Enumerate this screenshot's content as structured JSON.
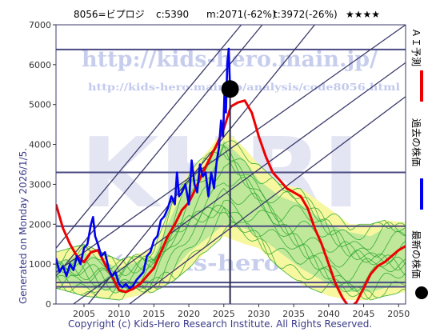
{
  "header": {
    "code": "8056=ビプロジ",
    "current": "c:5390",
    "max": "m:2071(-62%)",
    "target": "t:3972(-26%)",
    "rating": "★★★★"
  },
  "generated_label": "Generated on Monday 2026/1/5.",
  "copyright": "Copyright (c) Kids-Hero Research Institute. All Rights Reserved.",
  "watermark": {
    "url": "http://kids-hero.main.jp/",
    "analysis_url": "http://kids-hero.main.jp/analysis/code8056.html",
    "big": "KHRI",
    "small": "(c)kids-hero"
  },
  "legend": {
    "ai_forecast": "ＡＩ予測",
    "past_price": "過去の株価",
    "latest_price": "最新の株価"
  },
  "colors": {
    "ai_forecast": "#ee0000",
    "past_price": "#0000ee",
    "latest_marker": "#000000",
    "band_outer": "#f7f7a0",
    "band_inner": "#bfe89a",
    "scenario_lines": "#33aa33",
    "frame": "#3b3b6e"
  },
  "chart_data": {
    "type": "line",
    "title": "8056=ビプロジ",
    "xlim": [
      2001,
      2051
    ],
    "ylim": [
      0,
      7000
    ],
    "x_ticks": [
      "2005",
      "2010",
      "2015",
      "2020",
      "2025",
      "2030",
      "2035",
      "2040",
      "2045",
      "2050"
    ],
    "y_ticks": [
      "0",
      "1000",
      "2000",
      "3000",
      "4000",
      "5000",
      "6000",
      "7000"
    ],
    "grid": false,
    "latest_point": {
      "x": 2025.9,
      "y": 5390
    },
    "levels": [
      6380,
      3300,
      1950,
      540,
      430
    ],
    "trend_lines": [
      {
        "x": [
          2001,
          2030.5
        ],
        "y": [
          700,
          7000
        ]
      },
      {
        "x": [
          2001,
          2038
        ],
        "y": [
          -1000,
          7000
        ]
      },
      {
        "x": [
          2003.5,
          2051
        ],
        "y": [
          0,
          6050
        ]
      },
      {
        "x": [
          2011.5,
          2051
        ],
        "y": [
          0,
          5200
        ]
      },
      {
        "x": [
          2001,
          2027.5
        ],
        "y": [
          1400,
          7000
        ]
      },
      {
        "x": [
          2001,
          2051
        ],
        "y": [
          800,
          7000
        ]
      }
    ],
    "series": [
      {
        "name": "過去の株価",
        "x": [
          2001.0,
          2001.5,
          2002.0,
          2002.5,
          2003.0,
          2003.5,
          2004.0,
          2004.5,
          2005.0,
          2005.5,
          2006.0,
          2006.3,
          2006.6,
          2007.0,
          2007.5,
          2008.0,
          2008.5,
          2009.0,
          2009.5,
          2010.0,
          2010.5,
          2011.0,
          2011.5,
          2012.0,
          2012.5,
          2013.0,
          2013.5,
          2014.0,
          2014.5,
          2015.0,
          2015.5,
          2016.0,
          2016.5,
          2017.0,
          2017.5,
          2018.0,
          2018.3,
          2018.6,
          2019.0,
          2019.5,
          2020.0,
          2020.4,
          2020.8,
          2021.2,
          2021.6,
          2022.0,
          2022.4,
          2022.8,
          2023.2,
          2023.6,
          2024.0,
          2024.3,
          2024.6,
          2024.9,
          2025.1,
          2025.3,
          2025.5,
          2025.7,
          2025.9
        ],
        "values": [
          1150,
          800,
          950,
          700,
          1000,
          850,
          1200,
          1000,
          1400,
          1500,
          2000,
          2180,
          1700,
          1500,
          1200,
          1300,
          900,
          700,
          800,
          500,
          420,
          500,
          400,
          450,
          600,
          700,
          800,
          1200,
          1300,
          1600,
          1700,
          2100,
          2200,
          2400,
          2700,
          2500,
          3300,
          2700,
          2800,
          3000,
          2500,
          3600,
          3000,
          2800,
          3500,
          3200,
          3300,
          2700,
          3300,
          2900,
          3600,
          3900,
          4600,
          4200,
          5300,
          4800,
          6000,
          6400,
          5390
        ]
      },
      {
        "name": "ＡＩ予測",
        "x": [
          2001.0,
          2002.0,
          2003.0,
          2004.0,
          2005.0,
          2006.0,
          2007.0,
          2008.0,
          2009.0,
          2010.0,
          2011.0,
          2012.0,
          2013.0,
          2014.0,
          2015.0,
          2016.0,
          2017.0,
          2018.0,
          2019.0,
          2020.0,
          2021.0,
          2022.0,
          2023.0,
          2024.0,
          2025.0,
          2026.0,
          2027.0,
          2028.0,
          2029.0,
          2030.0,
          2031.0,
          2032.0,
          2033.0,
          2034.0,
          2035.0,
          2036.0,
          2037.0,
          2038.0,
          2039.0,
          2040.0,
          2041.0,
          2042.0,
          2043.0,
          2044.0,
          2045.0,
          2046.0,
          2047.0,
          2048.0,
          2049.0,
          2050.0,
          2051.0
        ],
        "values": [
          2500,
          1900,
          1500,
          1200,
          1050,
          1300,
          1350,
          1000,
          700,
          350,
          300,
          380,
          500,
          700,
          900,
          1300,
          1700,
          2000,
          2350,
          2550,
          2900,
          3300,
          3650,
          4000,
          4400,
          4950,
          5050,
          5100,
          4800,
          4200,
          3700,
          3300,
          3100,
          2900,
          2800,
          2700,
          2400,
          1900,
          1500,
          1000,
          500,
          150,
          -100,
          50,
          400,
          750,
          950,
          1050,
          1200,
          1350,
          1450
        ]
      }
    ],
    "band": {
      "x": [
        2001,
        2005,
        2010,
        2015,
        2018,
        2020,
        2023,
        2025,
        2028,
        2030,
        2033,
        2036,
        2040,
        2043,
        2046,
        2048,
        2051
      ],
      "outer_upper": [
        1300,
        1500,
        1100,
        1400,
        2700,
        3300,
        3900,
        4400,
        3900,
        3500,
        3000,
        2900,
        2400,
        2000,
        2000,
        2100,
        2050
      ],
      "outer_lower": [
        400,
        200,
        100,
        300,
        600,
        900,
        1400,
        1700,
        1500,
        1400,
        900,
        500,
        200,
        100,
        100,
        200,
        300
      ],
      "inner_upper": [
        1000,
        1300,
        900,
        1200,
        2400,
        3000,
        3600,
        4100,
        3600,
        3100,
        2700,
        2500,
        2000,
        1800,
        1700,
        1900,
        1900
      ],
      "inner_lower": [
        600,
        400,
        300,
        500,
        900,
        1300,
        1700,
        2000,
        1900,
        1700,
        1300,
        900,
        500,
        300,
        300,
        400,
        500
      ],
      "scenario_line_count": 12
    }
  }
}
